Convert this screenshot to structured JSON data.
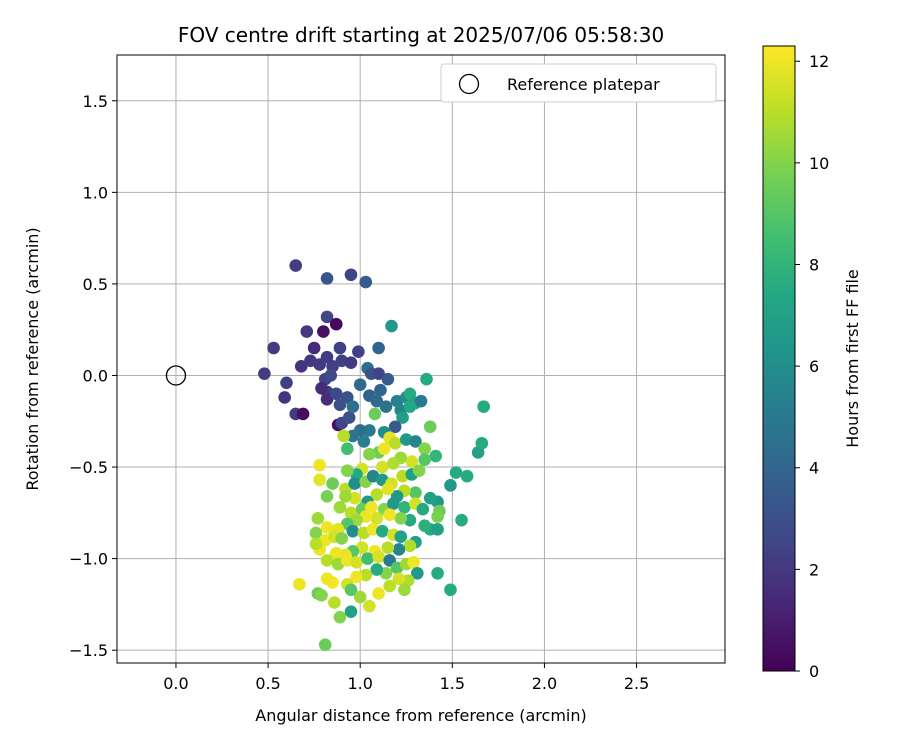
{
  "chart_data": {
    "type": "scatter",
    "title": "FOV centre drift starting at 2025/07/06 05:58:30",
    "xlabel": "Angular distance from reference (arcmin)",
    "ylabel": "Rotation from reference (arcmin)",
    "xlim": [
      -0.32,
      2.98
    ],
    "ylim": [
      -1.57,
      1.75
    ],
    "xticks": [
      "0.0",
      "0.5",
      "1.0",
      "1.5",
      "2.0",
      "2.5"
    ],
    "xtick_values": [
      0.0,
      0.5,
      1.0,
      1.5,
      2.0,
      2.5
    ],
    "yticks": [
      "−1.5",
      "−1.0",
      "−0.5",
      "0.0",
      "0.5",
      "1.0",
      "1.5"
    ],
    "ytick_values": [
      -1.5,
      -1.0,
      -0.5,
      0.0,
      0.5,
      1.0,
      1.5
    ],
    "grid": true,
    "legend": {
      "label": "Reference platepar",
      "position": "top-right"
    },
    "reference_point": {
      "x": 0.0,
      "y": 0.0
    },
    "colorbar": {
      "label": "Hours from first FF file",
      "colormap": "viridis",
      "range": [
        0,
        12.3
      ],
      "ticks": [
        "0",
        "2",
        "4",
        "6",
        "8",
        "10",
        "12"
      ],
      "tick_values": [
        0,
        2,
        4,
        6,
        8,
        10,
        12
      ]
    },
    "series": [
      {
        "points": [
          [
            0.65,
            0.6,
            2.2
          ],
          [
            0.95,
            0.55,
            2.5
          ],
          [
            0.82,
            0.53,
            3.3
          ],
          [
            1.03,
            0.51,
            3.5
          ],
          [
            0.82,
            0.32,
            2.5
          ],
          [
            0.87,
            0.28,
            0.3
          ],
          [
            0.8,
            0.24,
            0.5
          ],
          [
            0.71,
            0.24,
            2.0
          ],
          [
            0.53,
            0.15,
            2.1
          ],
          [
            0.89,
            0.15,
            2.3
          ],
          [
            0.99,
            0.13,
            2.4
          ],
          [
            0.75,
            0.15,
            1.5
          ],
          [
            0.73,
            0.08,
            2.0
          ],
          [
            0.78,
            0.06,
            2.1
          ],
          [
            0.82,
            0.1,
            2.2
          ],
          [
            0.85,
            0.05,
            2.3
          ],
          [
            0.9,
            0.08,
            2.4
          ],
          [
            0.95,
            0.07,
            2.0
          ],
          [
            0.68,
            0.05,
            1.8
          ],
          [
            0.48,
            0.01,
            2.2
          ],
          [
            0.6,
            -0.04,
            2.3
          ],
          [
            0.59,
            -0.12,
            1.9
          ],
          [
            0.65,
            -0.21,
            2.2
          ],
          [
            0.69,
            -0.21,
            0.4
          ],
          [
            0.81,
            -0.02,
            2.5
          ],
          [
            0.84,
            0.0,
            2.8
          ],
          [
            0.82,
            -0.09,
            2.2
          ],
          [
            0.79,
            -0.07,
            1.5
          ],
          [
            0.82,
            -0.13,
            1.6
          ],
          [
            0.87,
            -0.1,
            2.7
          ],
          [
            0.89,
            -0.16,
            3.0
          ],
          [
            0.93,
            -0.12,
            3.2
          ],
          [
            0.88,
            -0.27,
            0.5
          ],
          [
            0.9,
            -0.26,
            2.5
          ],
          [
            0.94,
            -0.23,
            3.0
          ],
          [
            0.96,
            -0.17,
            4.5
          ],
          [
            1.04,
            0.04,
            4.5
          ],
          [
            1.06,
            0.01,
            3.2
          ],
          [
            1.1,
            0.01,
            2.5
          ],
          [
            1.11,
            -0.08,
            4.0
          ],
          [
            1.17,
            0.27,
            6.5
          ],
          [
            1.1,
            0.15,
            4.0
          ],
          [
            1.15,
            -0.02,
            3.4
          ],
          [
            1.0,
            -0.05,
            4.3
          ],
          [
            1.05,
            -0.11,
            3.8
          ],
          [
            1.09,
            -0.14,
            4.2
          ],
          [
            1.14,
            -0.17,
            4.7
          ],
          [
            1.2,
            -0.14,
            5.3
          ],
          [
            1.25,
            -0.12,
            6.0
          ],
          [
            1.27,
            -0.1,
            7.5
          ],
          [
            1.22,
            -0.19,
            5.5
          ],
          [
            1.3,
            -0.15,
            7.0
          ],
          [
            1.36,
            -0.02,
            7.5
          ],
          [
            1.33,
            -0.14,
            5.0
          ],
          [
            1.27,
            -0.17,
            7.3
          ],
          [
            1.23,
            -0.23,
            6.8
          ],
          [
            1.19,
            -0.28,
            3.5
          ],
          [
            1.13,
            -0.31,
            6.0
          ],
          [
            1.08,
            -0.21,
            9.5
          ],
          [
            1.05,
            -0.3,
            5.0
          ],
          [
            1.0,
            -0.3,
            4.5
          ],
          [
            0.96,
            -0.33,
            4.8
          ],
          [
            1.02,
            -0.36,
            5.2
          ],
          [
            0.93,
            -0.4,
            8.5
          ],
          [
            0.91,
            -0.33,
            11.0
          ],
          [
            1.1,
            -0.42,
            9.5
          ],
          [
            1.05,
            -0.43,
            10.0
          ],
          [
            1.12,
            -0.5,
            11.5
          ],
          [
            1.16,
            -0.34,
            11.8
          ],
          [
            1.19,
            -0.37,
            11.0
          ],
          [
            1.13,
            -0.4,
            12.0
          ],
          [
            1.25,
            -0.35,
            6.5
          ],
          [
            1.3,
            -0.36,
            5.5
          ],
          [
            1.35,
            -0.4,
            10.0
          ],
          [
            1.38,
            -0.28,
            9.5
          ],
          [
            1.41,
            -0.44,
            8.0
          ],
          [
            1.35,
            -0.46,
            9.0
          ],
          [
            1.28,
            -0.47,
            11.5
          ],
          [
            1.22,
            -0.45,
            10.5
          ],
          [
            1.18,
            -0.48,
            10.8
          ],
          [
            1.01,
            -0.51,
            11.5
          ],
          [
            0.98,
            -0.54,
            7.5
          ],
          [
            0.93,
            -0.52,
            10.0
          ],
          [
            0.78,
            -0.49,
            12.0
          ],
          [
            0.78,
            -0.57,
            11.8
          ],
          [
            0.85,
            -0.59,
            9.5
          ],
          [
            0.92,
            -0.62,
            11.0
          ],
          [
            0.97,
            -0.59,
            6.0
          ],
          [
            1.03,
            -0.58,
            10.0
          ],
          [
            1.07,
            -0.55,
            5.5
          ],
          [
            1.12,
            -0.57,
            6.5
          ],
          [
            1.17,
            -0.59,
            11.5
          ],
          [
            1.23,
            -0.55,
            11.0
          ],
          [
            1.28,
            -0.54,
            7.0
          ],
          [
            1.32,
            -0.52,
            10.0
          ],
          [
            1.52,
            -0.53,
            7.5
          ],
          [
            1.58,
            -0.55,
            7.5
          ],
          [
            1.49,
            -0.6,
            6.5
          ],
          [
            1.64,
            -0.42,
            7.0
          ],
          [
            1.66,
            -0.37,
            7.5
          ],
          [
            1.67,
            -0.17,
            7.5
          ],
          [
            1.42,
            -0.69,
            6.5
          ],
          [
            1.38,
            -0.67,
            7.0
          ],
          [
            1.3,
            -0.64,
            9.0
          ],
          [
            1.24,
            -0.63,
            11.0
          ],
          [
            1.2,
            -0.66,
            6.5
          ],
          [
            1.15,
            -0.62,
            11.8
          ],
          [
            1.09,
            -0.65,
            11.0
          ],
          [
            1.04,
            -0.69,
            6.5
          ],
          [
            0.97,
            -0.67,
            11.5
          ],
          [
            0.92,
            -0.66,
            10.5
          ],
          [
            0.82,
            -0.66,
            9.8
          ],
          [
            0.89,
            -0.72,
            10.5
          ],
          [
            0.95,
            -0.75,
            11.0
          ],
          [
            1.01,
            -0.73,
            9.5
          ],
          [
            1.06,
            -0.72,
            12.0
          ],
          [
            1.13,
            -0.73,
            10.0
          ],
          [
            1.18,
            -0.7,
            6.5
          ],
          [
            1.24,
            -0.72,
            8.0
          ],
          [
            1.3,
            -0.7,
            11.5
          ],
          [
            1.34,
            -0.73,
            7.5
          ],
          [
            1.43,
            -0.74,
            9.5
          ],
          [
            1.42,
            -0.77,
            9.8
          ],
          [
            1.55,
            -0.79,
            7.5
          ],
          [
            1.38,
            -0.84,
            7.5
          ],
          [
            1.42,
            -0.84,
            7.0
          ],
          [
            1.35,
            -0.82,
            7.8
          ],
          [
            1.27,
            -0.79,
            7.5
          ],
          [
            1.22,
            -0.78,
            10.0
          ],
          [
            1.16,
            -0.76,
            12.0
          ],
          [
            1.09,
            -0.78,
            11.5
          ],
          [
            1.03,
            -0.77,
            12.0
          ],
          [
            0.98,
            -0.79,
            10.5
          ],
          [
            0.93,
            -0.81,
            9.0
          ],
          [
            0.88,
            -0.84,
            11.8
          ],
          [
            0.82,
            -0.83,
            12.0
          ],
          [
            0.77,
            -0.78,
            10.5
          ],
          [
            0.76,
            -0.86,
            10.0
          ],
          [
            0.81,
            -0.9,
            12.0
          ],
          [
            0.86,
            -0.88,
            11.5
          ],
          [
            0.9,
            -0.89,
            10.0
          ],
          [
            0.96,
            -0.85,
            6.0
          ],
          [
            1.02,
            -0.86,
            11.0
          ],
          [
            1.07,
            -0.84,
            12.0
          ],
          [
            1.12,
            -0.85,
            7.5
          ],
          [
            1.18,
            -0.87,
            11.5
          ],
          [
            1.22,
            -0.88,
            7.0
          ],
          [
            1.3,
            -0.91,
            7.0
          ],
          [
            1.27,
            -0.93,
            10.8
          ],
          [
            1.21,
            -0.95,
            5.5
          ],
          [
            1.15,
            -0.94,
            11.0
          ],
          [
            1.08,
            -0.96,
            12.0
          ],
          [
            1.01,
            -0.94,
            11.5
          ],
          [
            0.96,
            -0.96,
            9.0
          ],
          [
            0.92,
            -0.98,
            11.8
          ],
          [
            0.87,
            -0.97,
            12.0
          ],
          [
            0.78,
            -0.95,
            12.0
          ],
          [
            0.76,
            -0.92,
            11.0
          ],
          [
            0.82,
            -1.01,
            11.0
          ],
          [
            0.88,
            -1.03,
            10.5
          ],
          [
            0.93,
            -1.01,
            12.0
          ],
          [
            0.98,
            -1.02,
            11.5
          ],
          [
            1.04,
            -1.0,
            8.5
          ],
          [
            1.1,
            -0.99,
            11.5
          ],
          [
            1.16,
            -1.01,
            5.0
          ],
          [
            1.2,
            -1.05,
            9.0
          ],
          [
            1.25,
            -1.03,
            10.5
          ],
          [
            1.29,
            -1.02,
            12.0
          ],
          [
            1.31,
            -1.08,
            6.5
          ],
          [
            1.42,
            -1.08,
            7.5
          ],
          [
            1.26,
            -1.12,
            10.8
          ],
          [
            1.21,
            -1.11,
            11.5
          ],
          [
            1.14,
            -1.08,
            10.0
          ],
          [
            1.09,
            -1.06,
            7.5
          ],
          [
            1.03,
            -1.09,
            11.0
          ],
          [
            0.98,
            -1.1,
            12.0
          ],
          [
            0.93,
            -1.14,
            11.5
          ],
          [
            0.85,
            -1.13,
            12.2
          ],
          [
            0.82,
            -1.11,
            12.0
          ],
          [
            0.67,
            -1.14,
            12.0
          ],
          [
            0.77,
            -1.19,
            9.5
          ],
          [
            0.79,
            -1.2,
            10.0
          ],
          [
            0.86,
            -1.24,
            11.0
          ],
          [
            0.95,
            -1.17,
            9.0
          ],
          [
            1.0,
            -1.21,
            10.5
          ],
          [
            1.05,
            -1.26,
            11.5
          ],
          [
            1.1,
            -1.19,
            12.0
          ],
          [
            1.16,
            -1.15,
            11.0
          ],
          [
            1.24,
            -1.17,
            10.5
          ],
          [
            1.49,
            -1.17,
            7.5
          ],
          [
            0.95,
            -1.29,
            7.0
          ],
          [
            0.89,
            -1.32,
            10.0
          ],
          [
            0.81,
            -1.47,
            9.5
          ]
        ]
      }
    ]
  }
}
